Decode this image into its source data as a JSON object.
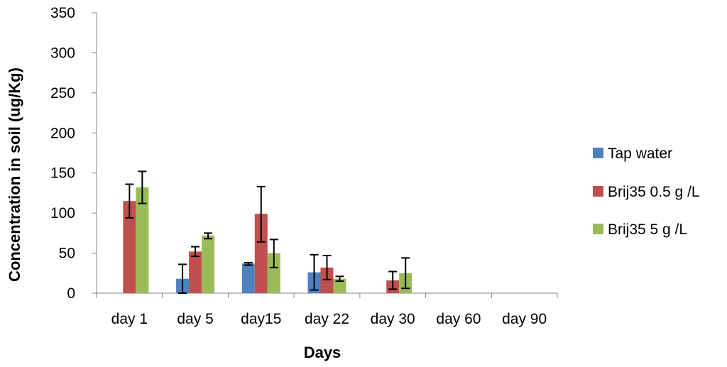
{
  "chart_data": {
    "type": "bar",
    "title": "",
    "xlabel": "Days",
    "ylabel": "Concentration in soil (ug/Kg)",
    "ylim": [
      0,
      350
    ],
    "yticks": [
      0,
      50,
      100,
      150,
      200,
      250,
      300,
      350
    ],
    "categories": [
      "day 1",
      "day 5",
      "day15",
      "day 22",
      "day 30",
      "day 60",
      "day 90"
    ],
    "series": [
      {
        "name": "Tap water",
        "color": "#4F81BD",
        "values": [
          0,
          18,
          37,
          26,
          0,
          0,
          0
        ],
        "error_low": [
          null,
          0,
          35,
          4,
          null,
          null,
          null
        ],
        "error_high": [
          null,
          36,
          38,
          48,
          null,
          null,
          null
        ]
      },
      {
        "name": "Brij35 0.5 g /L",
        "color": "#C0504D",
        "values": [
          115,
          52,
          99,
          32,
          16,
          0,
          0
        ],
        "error_low": [
          94,
          46,
          64,
          17,
          5,
          null,
          null
        ],
        "error_high": [
          136,
          58,
          133,
          47,
          27,
          null,
          null
        ]
      },
      {
        "name": "Brij35 5 g /L",
        "color": "#9BBB59",
        "values": [
          132,
          72,
          50,
          18,
          25,
          0,
          0
        ],
        "error_low": [
          112,
          68,
          32,
          15,
          6,
          null,
          null
        ],
        "error_high": [
          152,
          75,
          67,
          21,
          44,
          null,
          null
        ]
      }
    ],
    "legend_position": "right",
    "grid": false
  }
}
